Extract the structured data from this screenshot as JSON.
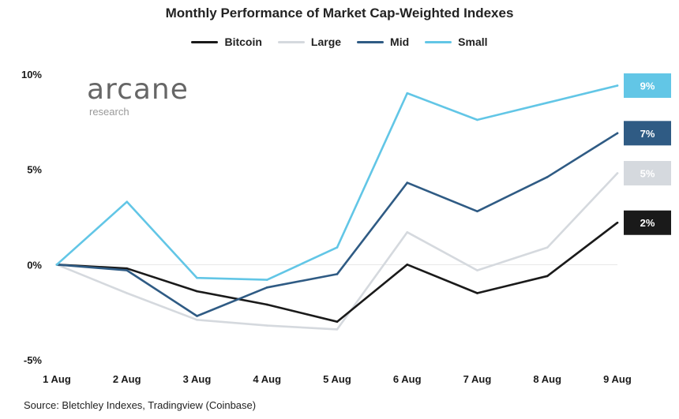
{
  "chart_data": {
    "type": "line",
    "title": "Monthly Performance of Market Cap-Weighted Indexes",
    "categories": [
      "1 Aug",
      "2 Aug",
      "3 Aug",
      "4 Aug",
      "5 Aug",
      "6 Aug",
      "7 Aug",
      "8 Aug",
      "9 Aug"
    ],
    "yticks": [
      {
        "value": 10,
        "label": "10%"
      },
      {
        "value": 5,
        "label": "5%"
      },
      {
        "value": 0,
        "label": "0%"
      },
      {
        "value": -5,
        "label": "-5%"
      }
    ],
    "ylim": [
      -5,
      10
    ],
    "legend_position": "top-center",
    "series": [
      {
        "name": "Bitcoin",
        "color": "#1a1a1a",
        "values": [
          0,
          -0.2,
          -1.4,
          -2.1,
          -3.0,
          0.0,
          -1.5,
          -0.6,
          2.2
        ],
        "end_label": "2%",
        "end_text_color": "#ffffff"
      },
      {
        "name": "Large",
        "color": "#d5d9de",
        "values": [
          0,
          -1.5,
          -2.9,
          -3.2,
          -3.4,
          1.7,
          -0.3,
          0.9,
          4.8
        ],
        "end_label": "5%",
        "end_text_color": "#ffffff"
      },
      {
        "name": "Mid",
        "color": "#2f5b84",
        "values": [
          0,
          -0.3,
          -2.7,
          -1.2,
          -0.5,
          4.3,
          2.8,
          4.6,
          6.9
        ],
        "end_label": "7%",
        "end_text_color": "#ffffff"
      },
      {
        "name": "Small",
        "color": "#62c6e6",
        "values": [
          0,
          3.3,
          -0.7,
          -0.8,
          0.9,
          9.0,
          7.6,
          8.5,
          9.4
        ],
        "end_label": "9%",
        "end_text_color": "#ffffff"
      }
    ]
  },
  "branding": {
    "name": "arcane",
    "subtitle": "research"
  },
  "source": "Source: Bletchley Indexes, Tradingview (Coinbase)"
}
